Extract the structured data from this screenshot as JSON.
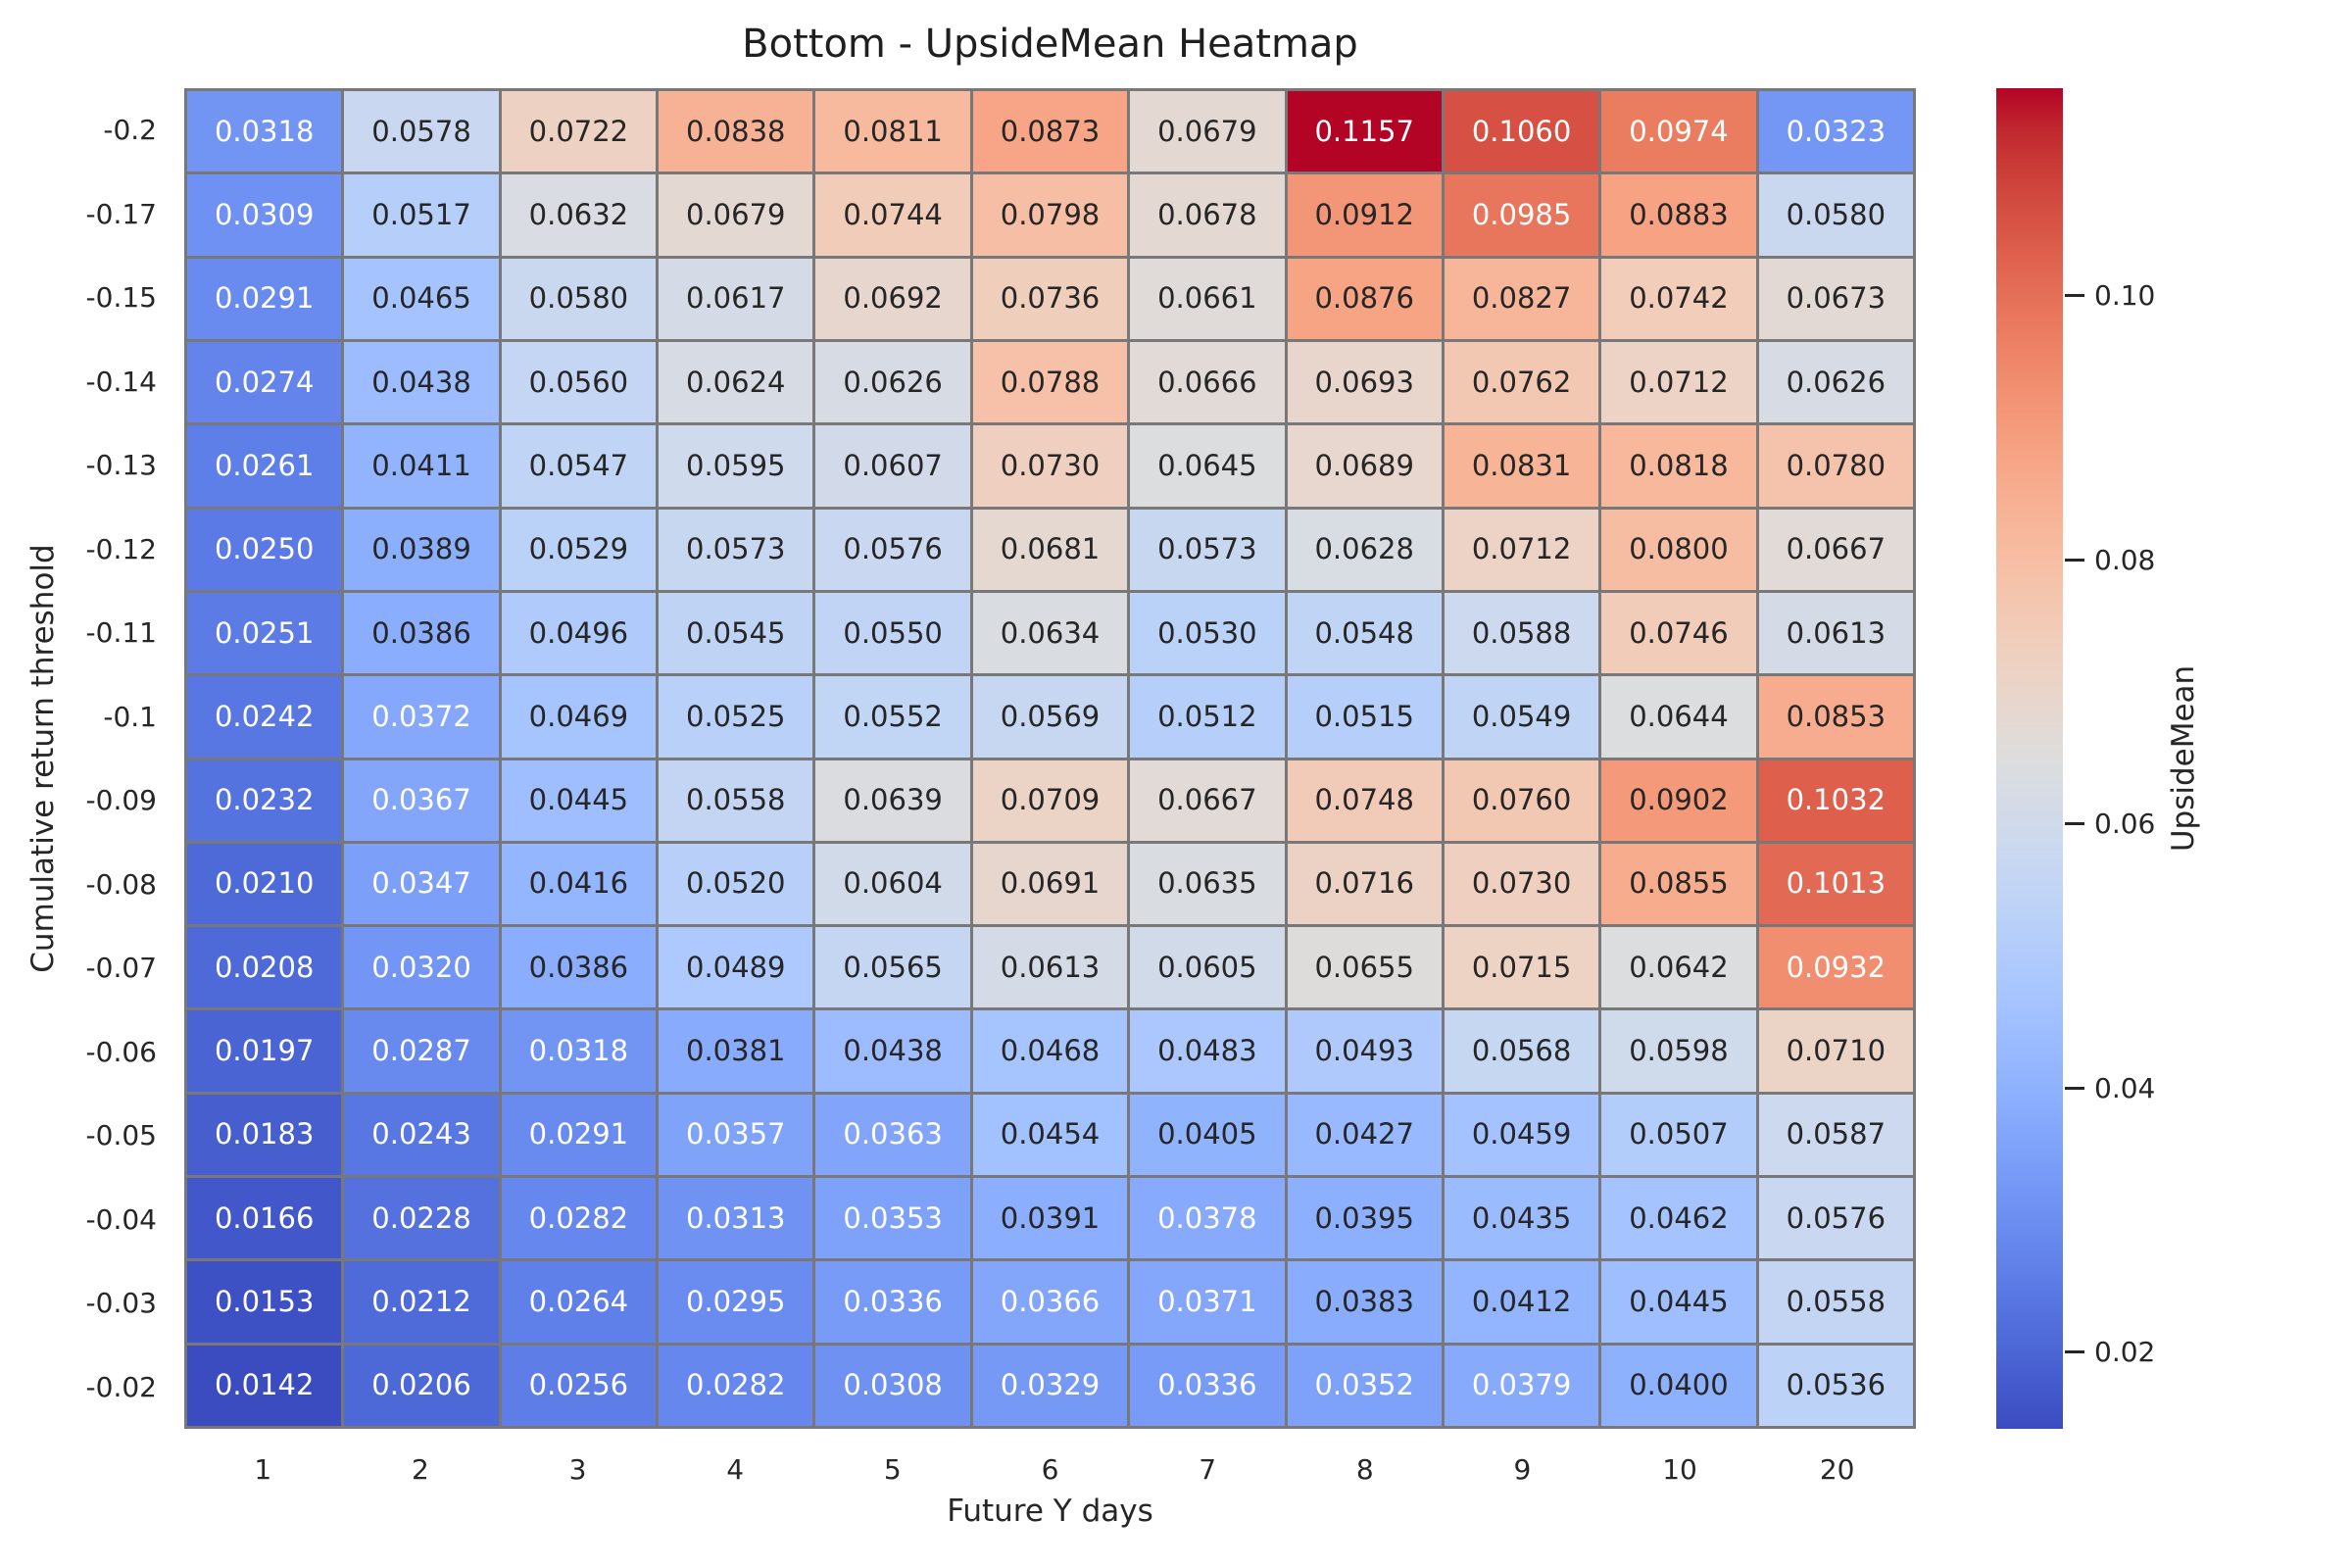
{
  "chart_data": {
    "type": "heatmap",
    "title": "Bottom - UpsideMean Heatmap",
    "xlabel": "Future Y days",
    "ylabel": "Cumulative return threshold",
    "colormap": "coolwarm",
    "vmin": 0.0142,
    "vmax": 0.1157,
    "x_categories": [
      "1",
      "2",
      "3",
      "4",
      "5",
      "6",
      "7",
      "8",
      "9",
      "10",
      "20"
    ],
    "y_categories": [
      "-0.2",
      "-0.17",
      "-0.15",
      "-0.14",
      "-0.13",
      "-0.12",
      "-0.11",
      "-0.1",
      "-0.09",
      "-0.08",
      "-0.07",
      "-0.06",
      "-0.05",
      "-0.04",
      "-0.03",
      "-0.02"
    ],
    "values": [
      [
        "0.0318",
        "0.0578",
        "0.0722",
        "0.0838",
        "0.0811",
        "0.0873",
        "0.0679",
        "0.1157",
        "0.1060",
        "0.0974",
        "0.0323"
      ],
      [
        "0.0309",
        "0.0517",
        "0.0632",
        "0.0679",
        "0.0744",
        "0.0798",
        "0.0678",
        "0.0912",
        "0.0985",
        "0.0883",
        "0.0580"
      ],
      [
        "0.0291",
        "0.0465",
        "0.0580",
        "0.0617",
        "0.0692",
        "0.0736",
        "0.0661",
        "0.0876",
        "0.0827",
        "0.0742",
        "0.0673"
      ],
      [
        "0.0274",
        "0.0438",
        "0.0560",
        "0.0624",
        "0.0626",
        "0.0788",
        "0.0666",
        "0.0693",
        "0.0762",
        "0.0712",
        "0.0626"
      ],
      [
        "0.0261",
        "0.0411",
        "0.0547",
        "0.0595",
        "0.0607",
        "0.0730",
        "0.0645",
        "0.0689",
        "0.0831",
        "0.0818",
        "0.0780"
      ],
      [
        "0.0250",
        "0.0389",
        "0.0529",
        "0.0573",
        "0.0576",
        "0.0681",
        "0.0573",
        "0.0628",
        "0.0712",
        "0.0800",
        "0.0667"
      ],
      [
        "0.0251",
        "0.0386",
        "0.0496",
        "0.0545",
        "0.0550",
        "0.0634",
        "0.0530",
        "0.0548",
        "0.0588",
        "0.0746",
        "0.0613"
      ],
      [
        "0.0242",
        "0.0372",
        "0.0469",
        "0.0525",
        "0.0552",
        "0.0569",
        "0.0512",
        "0.0515",
        "0.0549",
        "0.0644",
        "0.0853"
      ],
      [
        "0.0232",
        "0.0367",
        "0.0445",
        "0.0558",
        "0.0639",
        "0.0709",
        "0.0667",
        "0.0748",
        "0.0760",
        "0.0902",
        "0.1032"
      ],
      [
        "0.0210",
        "0.0347",
        "0.0416",
        "0.0520",
        "0.0604",
        "0.0691",
        "0.0635",
        "0.0716",
        "0.0730",
        "0.0855",
        "0.1013"
      ],
      [
        "0.0208",
        "0.0320",
        "0.0386",
        "0.0489",
        "0.0565",
        "0.0613",
        "0.0605",
        "0.0655",
        "0.0715",
        "0.0642",
        "0.0932"
      ],
      [
        "0.0197",
        "0.0287",
        "0.0318",
        "0.0381",
        "0.0438",
        "0.0468",
        "0.0483",
        "0.0493",
        "0.0568",
        "0.0598",
        "0.0710"
      ],
      [
        "0.0183",
        "0.0243",
        "0.0291",
        "0.0357",
        "0.0363",
        "0.0454",
        "0.0405",
        "0.0427",
        "0.0459",
        "0.0507",
        "0.0587"
      ],
      [
        "0.0166",
        "0.0228",
        "0.0282",
        "0.0313",
        "0.0353",
        "0.0391",
        "0.0378",
        "0.0395",
        "0.0435",
        "0.0462",
        "0.0576"
      ],
      [
        "0.0153",
        "0.0212",
        "0.0264",
        "0.0295",
        "0.0336",
        "0.0366",
        "0.0371",
        "0.0383",
        "0.0412",
        "0.0445",
        "0.0558"
      ],
      [
        "0.0142",
        "0.0206",
        "0.0256",
        "0.0282",
        "0.0308",
        "0.0329",
        "0.0336",
        "0.0352",
        "0.0379",
        "0.0400",
        "0.0536"
      ]
    ],
    "colorbar": {
      "label": "UpsideMean",
      "tick_labels": [
        "0.10",
        "0.08",
        "0.06",
        "0.04",
        "0.02"
      ],
      "tick_values": [
        0.1,
        0.08,
        0.06,
        0.04,
        0.02
      ]
    },
    "legend_position": "right",
    "grid": false
  },
  "colors": {
    "background": "#ffffff",
    "grid_line": "#787878",
    "annotation_dark": "#262626",
    "annotation_light": "#ffffff",
    "tick_text": "#262626"
  }
}
